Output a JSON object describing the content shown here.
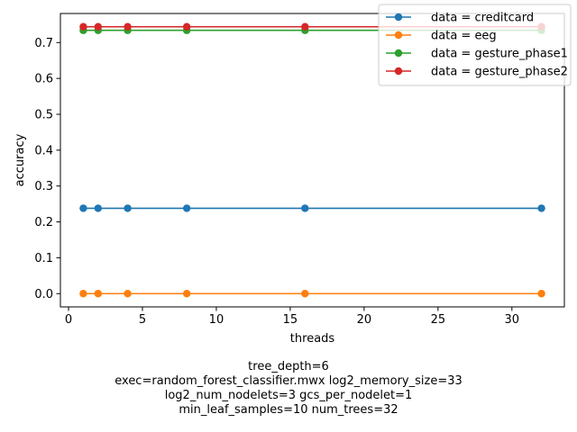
{
  "chart_data": {
    "type": "line",
    "xlabel": "threads",
    "ylabel": "accuracy",
    "xlim": [
      -0.55,
      33.55
    ],
    "ylim": [
      -0.037,
      0.781
    ],
    "xticks": [
      0,
      5,
      10,
      15,
      20,
      25,
      30
    ],
    "yticks": [
      0.0,
      0.1,
      0.2,
      0.3,
      0.4,
      0.5,
      0.6,
      0.7
    ],
    "ytick_labels": [
      "0.0",
      "0.1",
      "0.2",
      "0.3",
      "0.4",
      "0.5",
      "0.6",
      "0.7"
    ],
    "grid": false,
    "legend_position": "top-right",
    "x": [
      1,
      2,
      4,
      8,
      16,
      32
    ],
    "series": [
      {
        "name": "data = creditcard",
        "color": "#1f77b4",
        "values": [
          0.238,
          0.238,
          0.238,
          0.238,
          0.238,
          0.238
        ]
      },
      {
        "name": "data = eeg",
        "color": "#ff7f0e",
        "values": [
          0.0,
          0.0,
          0.0,
          0.0,
          0.0,
          0.0
        ]
      },
      {
        "name": "data = gesture_phase1",
        "color": "#2ca02c",
        "values": [
          0.734,
          0.734,
          0.734,
          0.734,
          0.734,
          0.734
        ]
      },
      {
        "name": "data = gesture_phase2",
        "color": "#d62728",
        "values": [
          0.744,
          0.744,
          0.744,
          0.744,
          0.744,
          0.744
        ]
      }
    ],
    "caption_lines": [
      "tree_depth=6",
      "exec=random_forest_classifier.mwx   log2_memory_size=33",
      "log2_num_nodelets=3   gcs_per_nodelet=1",
      "min_leaf_samples=10   num_trees=32"
    ]
  }
}
